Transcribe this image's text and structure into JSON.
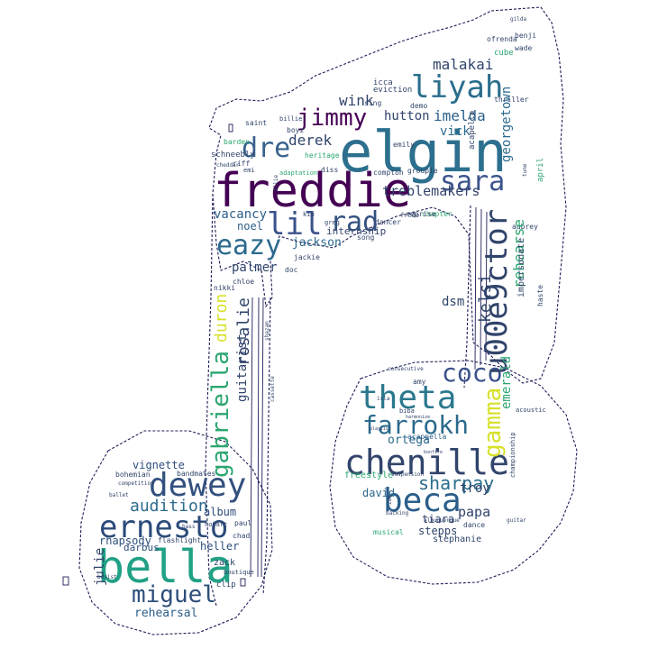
{
  "palette": {
    "dark_purple": "#440154",
    "indigo": "#3b2a7d",
    "navy": "#31446b",
    "slate": "#2c5f8a",
    "teal": "#21807a",
    "green": "#2aa66f",
    "lime": "#7cc84e",
    "yellow": "#d7e12a",
    "outline": "#1e1e5a"
  },
  "words": {
    "freddie": "freddie",
    "elgin": "elgin",
    "bella": "bella",
    "chenille": "chenille",
    "dewey": "dewey",
    "ernesto": "ernesto",
    "beca": "beca",
    "liyah": "liyah",
    "lil": "lil",
    "rad": "rad",
    "eazy": "eazy",
    "dre": "dre",
    "jimmy": "jimmy",
    "sara": "sara",
    "theta": "theta",
    "farrokh": "farrokh",
    "u00e9ctor": "u00e9ctor",
    "gabriella": "gabriella",
    "gamma": "gamma",
    "miguel": "miguel",
    "coco": "coco",
    "sharpay": "sharpay",
    "audition": "audition",
    "malakai": "malakai",
    "imelda": "imelda",
    "derek": "derek",
    "wink": "wink",
    "duron": "duron",
    "rosalie": "rosalie",
    "kelsi": "kelsi",
    "rehearse": "rehearse",
    "emerald": "emerald",
    "treblemakers": "treblemakers",
    "hutton": "hutton",
    "vick": "vick",
    "georgetown": "georgetown",
    "acapella": "acapella",
    "jackson": "jackson",
    "noel": "noel",
    "vacancy": "vacancy",
    "internship": "internship",
    "palmer": "palmer",
    "guitarist": "guitarist",
    "dsm": "dsm",
    "ortega": "ortega",
    "papa": "papa",
    "troy": "troy",
    "david": "david",
    "tiara": "tiara",
    "stepps": "stepps",
    "stephanie": "stephanie",
    "freestyle": "freestyle",
    "acappella": "acappella",
    "vignette": "vignette",
    "rhapsody": "rhapsody",
    "album": "album",
    "heller": "heller",
    "darbus": "darbus",
    "flashlight": "flashlight",
    "zack": "zack",
    "julie": "julie",
    "rehearsal": "rehearsal",
    "bandmates": "bandmates",
    "bohemian": "bohemian",
    "clip": "clip",
    "paul": "paul",
    "chad": "chad",
    "boutique": "boutique",
    "hobart": "hobart",
    "chloe": "chloe",
    "nikki": "nikki",
    "jackie": "jackie",
    "doc": "doc",
    "kim": "kim",
    "greg": "greg",
    "song": "song",
    "dancer": "dancer",
    "fredo": "fredo",
    "chapter": "chapter",
    "aubrey": "aubrey",
    "impersonate": "impersonate",
    "haste": "haste",
    "amy": "amy",
    "biba": "biba",
    "acoustic": "acoustic",
    "championship": "championship",
    "cube": "cube",
    "wade": "wade",
    "benji": "benji",
    "gilda": "gilda",
    "ofrenda": "ofrenda",
    "icca": "icca",
    "eviction": "eviction",
    "sing": "sing",
    "demo": "demo",
    "thriller": "thriller",
    "emily": "emily",
    "reprise": "reprise",
    "barden": "barden",
    "schneebly": "schneebly",
    "heritage": "heritage",
    "riff": "riff",
    "emi": "emi",
    "adaptation": "adaptation",
    "diss": "diss",
    "compton": "compton",
    "saint": "saint",
    "boyz": "boyz",
    "billie": "billie",
    "cheddar": "cheddar",
    "groupie": "groupie",
    "april": "april",
    "competition": "competition",
    "ballet": "ballet",
    "bass": "bass",
    "basist": "basist",
    "dance": "dance",
    "guitar": "guitar",
    "musical": "musical",
    "backing": "backing",
    "albuquerque": "albuquerque",
    "suspension": "suspension",
    "harmonize": "harmonize",
    "consecutive": "consecutive",
    "shazam": "shazam",
    "cassette": "cassette",
    "ellie": "ellie",
    "isla": "isla",
    "zoe": "zoe",
    "playlist": "playlist",
    "bonfire": "bonfire",
    "tune": "tune"
  }
}
